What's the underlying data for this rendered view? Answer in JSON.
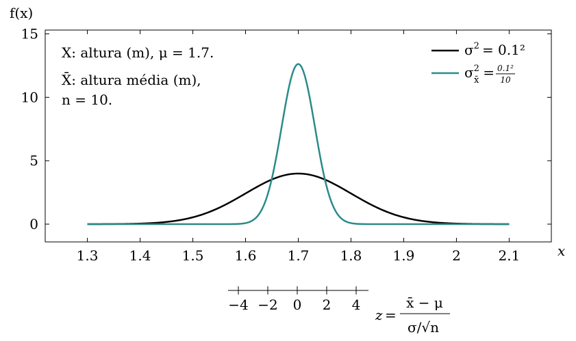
{
  "chart_data": [
    {
      "type": "line",
      "ylabel": "f(x)",
      "xlabel": "x",
      "xlim": [
        1.22,
        2.18
      ],
      "ylim": [
        -1.4,
        15.3
      ],
      "xticks": [
        1.3,
        1.4,
        1.5,
        1.6,
        1.7,
        1.8,
        1.9,
        2.0,
        2.1
      ],
      "xtick_labels": [
        "1.3",
        "1.4",
        "1.5",
        "1.6",
        "1.7",
        "1.8",
        "1.9",
        "2",
        "2.1"
      ],
      "yticks": [
        0,
        5,
        10,
        15
      ],
      "ytick_labels": [
        "0",
        "5",
        "10",
        "15"
      ],
      "grid": false,
      "legend_position": "top-right",
      "series": [
        {
          "name": "σ² = 0.1²",
          "label_base": "σ",
          "label_sup": "2",
          "label_sub": "",
          "label_rhs": "= 0.1²",
          "color": "#000000",
          "mu": 1.7,
          "sigma": 0.1,
          "x_range": [
            1.3,
            2.1
          ]
        },
        {
          "name": "σ²x̄ = 0.1²/10",
          "label_base": "σ",
          "label_sup": "2",
          "label_sub": "x̄",
          "label_rhs": "=",
          "label_frac_num": "0.1²",
          "label_frac_den": "10",
          "color": "#2a8a8a",
          "mu": 1.7,
          "sigma": 0.0316,
          "x_range": [
            1.3,
            2.1
          ]
        }
      ],
      "annotations": [
        "X: altura (m), μ = 1.7.",
        "X̄:  altura média (m),",
        "n = 10."
      ]
    },
    {
      "type": "axis",
      "axis_label": "z = (x̄ − μ)/(σ/√n)",
      "ticks": [
        -4,
        -2,
        0,
        2,
        4
      ],
      "tick_labels": [
        "−4",
        "−2",
        "0",
        "2",
        "4"
      ]
    }
  ]
}
